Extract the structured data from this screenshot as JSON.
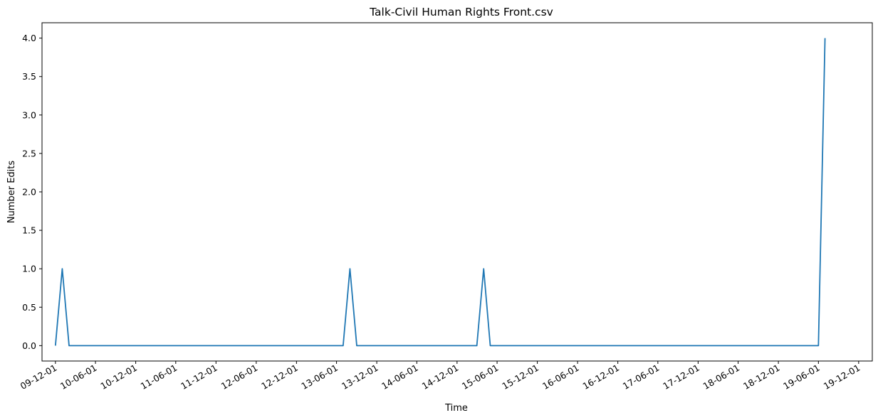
{
  "chart_data": {
    "type": "line",
    "title": "Talk-Civil Human Rights Front.csv",
    "xlabel": "Time",
    "ylabel": "Number Edits",
    "x_tick_labels": [
      "09-12-01",
      "10-06-01",
      "10-12-01",
      "11-06-01",
      "11-12-01",
      "12-06-01",
      "12-12-01",
      "13-06-01",
      "13-12-01",
      "14-06-01",
      "14-12-01",
      "15-06-01",
      "15-12-01",
      "16-06-01",
      "16-12-01",
      "17-06-01",
      "17-12-01",
      "18-06-01",
      "18-12-01",
      "19-06-01",
      "19-12-01"
    ],
    "x_tick_dates": [
      "2009-12-01",
      "2010-06-01",
      "2010-12-01",
      "2011-06-01",
      "2011-12-01",
      "2012-06-01",
      "2012-12-01",
      "2013-06-01",
      "2013-12-01",
      "2014-06-01",
      "2014-12-01",
      "2015-06-01",
      "2015-12-01",
      "2016-06-01",
      "2016-12-01",
      "2017-06-01",
      "2017-12-01",
      "2018-06-01",
      "2018-12-01",
      "2019-06-01",
      "2019-12-01"
    ],
    "y_tick_labels": [
      "0.0",
      "0.5",
      "1.0",
      "1.5",
      "2.0",
      "2.5",
      "3.0",
      "3.5",
      "4.0"
    ],
    "y_ticks": [
      0,
      0.5,
      1.0,
      1.5,
      2.0,
      2.5,
      3.0,
      3.5,
      4.0
    ],
    "xlim": [
      "2009-10-01",
      "2020-02-01"
    ],
    "ylim": [
      -0.2,
      4.2
    ],
    "grid": false,
    "series": [
      {
        "color": "#1f77b4",
        "points": [
          {
            "x": "2009-12-01",
            "y": 0
          },
          {
            "x": "2010-01-01",
            "y": 1
          },
          {
            "x": "2010-02-01",
            "y": 0
          },
          {
            "x": "2013-07-01",
            "y": 0
          },
          {
            "x": "2013-08-01",
            "y": 1
          },
          {
            "x": "2013-09-01",
            "y": 0
          },
          {
            "x": "2015-03-01",
            "y": 0
          },
          {
            "x": "2015-04-01",
            "y": 1
          },
          {
            "x": "2015-05-01",
            "y": 0
          },
          {
            "x": "2019-06-01",
            "y": 0
          },
          {
            "x": "2019-07-01",
            "y": 4
          }
        ]
      }
    ]
  }
}
